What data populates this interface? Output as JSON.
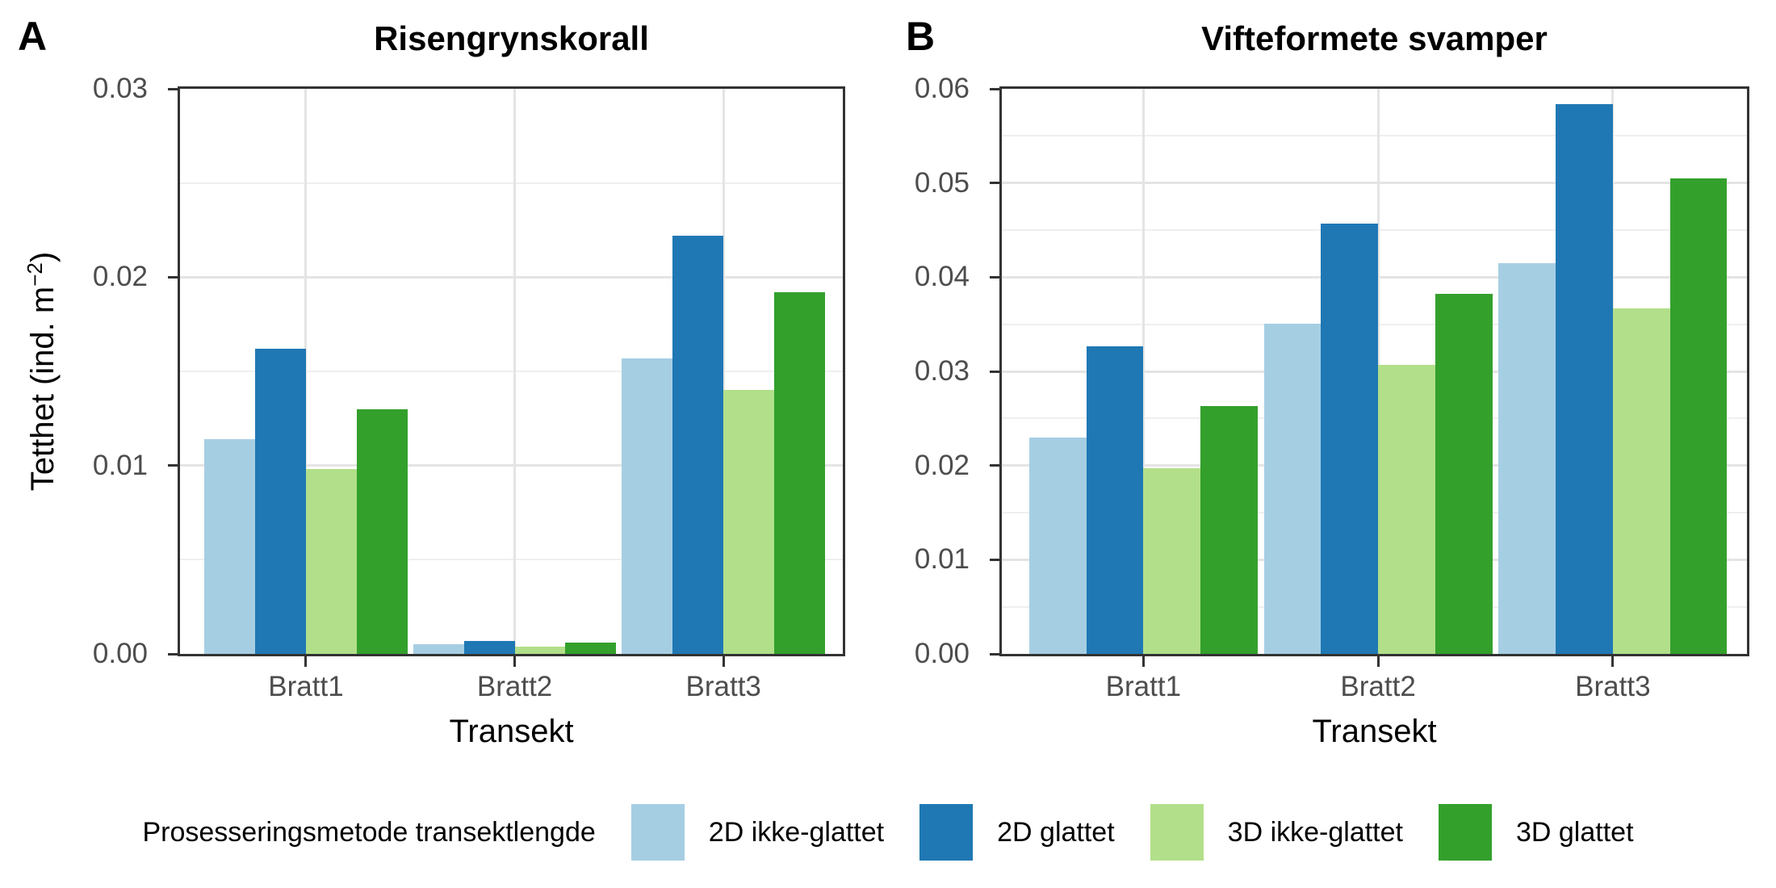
{
  "figure": {
    "ylabel_prefix": "Tetthet (ind. m",
    "ylabel_sup": "−2",
    "ylabel_suffix": ")"
  },
  "legend": {
    "title": "Prosesseringsmetode transektlengde",
    "items": [
      {
        "label": "2D ikke-glattet",
        "color": "#a6cee3"
      },
      {
        "label": "2D glattet",
        "color": "#1f78b4"
      },
      {
        "label": "3D ikke-glattet",
        "color": "#b2df8a"
      },
      {
        "label": "3D glattet",
        "color": "#33a02c"
      }
    ]
  },
  "chart_data": [
    {
      "type": "bar",
      "panel_tag": "A",
      "title": "Risengrynskorall",
      "xlabel": "Transekt",
      "ylabel": "Tetthet (ind. m⁻²)",
      "categories": [
        "Bratt1",
        "Bratt2",
        "Bratt3"
      ],
      "series": [
        {
          "name": "2D ikke-glattet",
          "color": "#a6cee3",
          "values": [
            0.0114,
            0.0005,
            0.0157
          ]
        },
        {
          "name": "2D glattet",
          "color": "#1f78b4",
          "values": [
            0.0162,
            0.0007,
            0.0222
          ]
        },
        {
          "name": "3D ikke-glattet",
          "color": "#b2df8a",
          "values": [
            0.0098,
            0.0004,
            0.014
          ]
        },
        {
          "name": "3D glattet",
          "color": "#33a02c",
          "values": [
            0.013,
            0.0006,
            0.0192
          ]
        }
      ],
      "ylim": [
        0,
        0.03
      ],
      "ytick_step": 0.01,
      "ytick_labels": [
        "0.00",
        "0.01",
        "0.02",
        "0.03"
      ],
      "minor_grid": true,
      "grid": true,
      "legend_title": "Prosesseringsmetode transektlengde",
      "legend_position": "bottom"
    },
    {
      "type": "bar",
      "panel_tag": "B",
      "title": "Vifteformete svamper",
      "xlabel": "Transekt",
      "ylabel": "",
      "categories": [
        "Bratt1",
        "Bratt2",
        "Bratt3"
      ],
      "series": [
        {
          "name": "2D ikke-glattet",
          "color": "#a6cee3",
          "values": [
            0.023,
            0.0351,
            0.0415
          ]
        },
        {
          "name": "2D glattet",
          "color": "#1f78b4",
          "values": [
            0.0327,
            0.0457,
            0.0584
          ]
        },
        {
          "name": "3D ikke-glattet",
          "color": "#b2df8a",
          "values": [
            0.0197,
            0.0307,
            0.0367
          ]
        },
        {
          "name": "3D glattet",
          "color": "#33a02c",
          "values": [
            0.0263,
            0.0382,
            0.0505
          ]
        }
      ],
      "ylim": [
        0,
        0.06
      ],
      "ytick_step": 0.01,
      "ytick_labels": [
        "0.00",
        "0.01",
        "0.02",
        "0.03",
        "0.04",
        "0.05",
        "0.06"
      ],
      "minor_grid": true,
      "grid": true,
      "legend_title": "Prosesseringsmetode transektlengde",
      "legend_position": "bottom"
    }
  ]
}
